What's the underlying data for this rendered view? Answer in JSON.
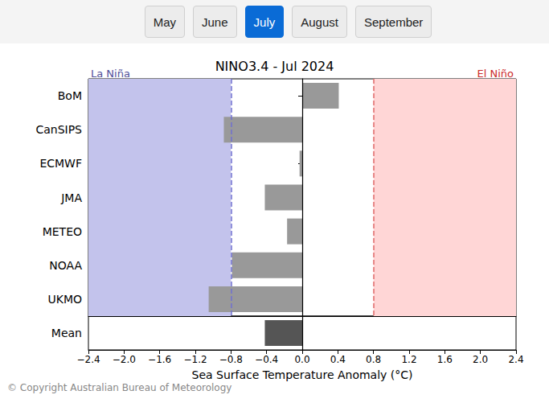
{
  "buttons": [
    "May",
    "June",
    "July",
    "August",
    "September"
  ],
  "selected_button": "July",
  "footer": "© Copyright Australian Bureau of Meteorology",
  "chart_data": {
    "type": "bar",
    "orientation": "horizontal",
    "title": "NINO3.4 - Jul 2024",
    "xlabel": "Sea Surface Temperature Anomaly (°C)",
    "categories": [
      "BoM",
      "CanSIPS",
      "ECMWF",
      "JMA",
      "METEO",
      "NOAA",
      "UKMO"
    ],
    "values": [
      0.41,
      -0.88,
      -0.03,
      -0.42,
      -0.17,
      -0.79,
      -1.05
    ],
    "color": "#999999",
    "mean": {
      "label": "Mean",
      "value": -0.42,
      "color": "#555555"
    },
    "thresholds": [
      {
        "label": "La Niña",
        "value": -0.8,
        "color": "#c3c3ec"
      },
      {
        "label": "El Niño",
        "value": 0.8,
        "color": "#ffd6d6"
      }
    ],
    "xlim": [
      -2.4,
      2.4
    ],
    "xticks": [
      {
        "value": -2.4,
        "label": "−2.4"
      },
      {
        "value": -2.0,
        "label": "−2.0"
      },
      {
        "value": -1.6,
        "label": "−1.6"
      },
      {
        "value": -1.2,
        "label": "−1.2"
      },
      {
        "value": -0.8,
        "label": "−0.8"
      },
      {
        "value": -0.4,
        "label": "−0.4"
      },
      {
        "value": 0,
        "label": "0.0"
      },
      0.4,
      0.8,
      1.2,
      1.6,
      {
        "value": 2,
        "label": "2.0"
      },
      2.4
    ]
  }
}
